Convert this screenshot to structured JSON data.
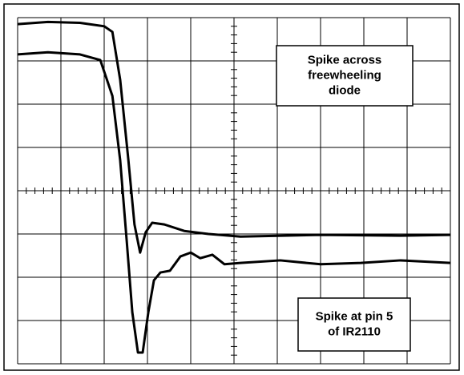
{
  "chart_data": {
    "type": "line",
    "xlim": [
      0,
      10
    ],
    "ylim": [
      0,
      8
    ],
    "xticks": [
      0,
      1,
      2,
      3,
      4,
      5,
      6,
      7,
      8,
      9,
      10
    ],
    "yticks": [
      0,
      1,
      2,
      3,
      4,
      5,
      6,
      7,
      8
    ],
    "grid": true,
    "series": [
      {
        "color": "#000000",
        "x": [
          0,
          0.7,
          1.44,
          2.0,
          2.19,
          2.37,
          2.56,
          2.7,
          2.83,
          2.96,
          3.11,
          3.39,
          3.85,
          4.41,
          5.15,
          7.0,
          8.85,
          10
        ],
        "values": [
          7.85,
          7.9,
          7.88,
          7.8,
          7.67,
          6.56,
          4.7,
          3.22,
          2.57,
          3.04,
          3.26,
          3.22,
          3.07,
          3.0,
          2.94,
          2.98,
          2.96,
          2.98
        ]
      },
      {
        "color": "#000000",
        "x": [
          0,
          0.7,
          1.44,
          1.91,
          2.19,
          2.37,
          2.52,
          2.65,
          2.78,
          2.89,
          3.02,
          3.15,
          3.3,
          3.52,
          3.76,
          4.0,
          4.22,
          4.5,
          4.78,
          5.15,
          6.07,
          7.0,
          7.93,
          8.85,
          10
        ],
        "values": [
          7.15,
          7.2,
          7.15,
          7.02,
          6.19,
          4.7,
          2.85,
          1.19,
          0.26,
          0.26,
          1.19,
          1.93,
          2.11,
          2.15,
          2.48,
          2.57,
          2.44,
          2.52,
          2.3,
          2.33,
          2.39,
          2.3,
          2.33,
          2.39,
          2.33
        ]
      }
    ],
    "annotations": [
      {
        "lines": [
          "Spike across",
          "freewheeling",
          "diode"
        ]
      },
      {
        "lines": [
          "Spike at pin 5",
          "of IR2110"
        ]
      }
    ]
  }
}
